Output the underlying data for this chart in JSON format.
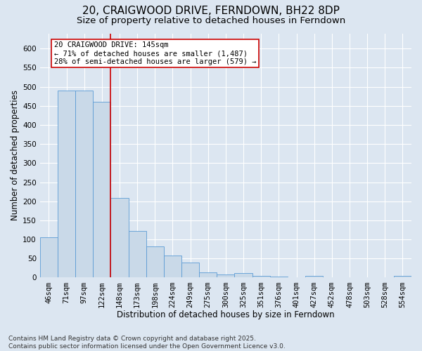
{
  "title": "20, CRAIGWOOD DRIVE, FERNDOWN, BH22 8DP",
  "subtitle": "Size of property relative to detached houses in Ferndown",
  "xlabel": "Distribution of detached houses by size in Ferndown",
  "ylabel": "Number of detached properties",
  "footer": "Contains HM Land Registry data © Crown copyright and database right 2025.\nContains public sector information licensed under the Open Government Licence v3.0.",
  "categories": [
    "46sqm",
    "71sqm",
    "97sqm",
    "122sqm",
    "148sqm",
    "173sqm",
    "198sqm",
    "224sqm",
    "249sqm",
    "275sqm",
    "300sqm",
    "325sqm",
    "351sqm",
    "376sqm",
    "401sqm",
    "427sqm",
    "452sqm",
    "478sqm",
    "503sqm",
    "528sqm",
    "554sqm"
  ],
  "values": [
    105,
    490,
    490,
    460,
    208,
    122,
    82,
    57,
    39,
    14,
    8,
    11,
    4,
    2,
    0,
    5,
    0,
    0,
    0,
    0,
    5
  ],
  "bar_color": "#c9d9e8",
  "bar_edge_color": "#5b9bd5",
  "highlight_line_color": "#cc0000",
  "annotation_text": "20 CRAIGWOOD DRIVE: 145sqm\n← 71% of detached houses are smaller (1,487)\n28% of semi-detached houses are larger (579) →",
  "annotation_box_color": "#ffffff",
  "annotation_box_edge": "#cc0000",
  "ylim": [
    0,
    640
  ],
  "yticks": [
    0,
    50,
    100,
    150,
    200,
    250,
    300,
    350,
    400,
    450,
    500,
    550,
    600
  ],
  "background_color": "#dce6f1",
  "plot_bg_color": "#dce6f1",
  "grid_color": "#ffffff",
  "title_fontsize": 11,
  "subtitle_fontsize": 9.5,
  "axis_label_fontsize": 8.5,
  "tick_fontsize": 7.5,
  "footer_fontsize": 6.5,
  "annotation_fontsize": 7.5
}
